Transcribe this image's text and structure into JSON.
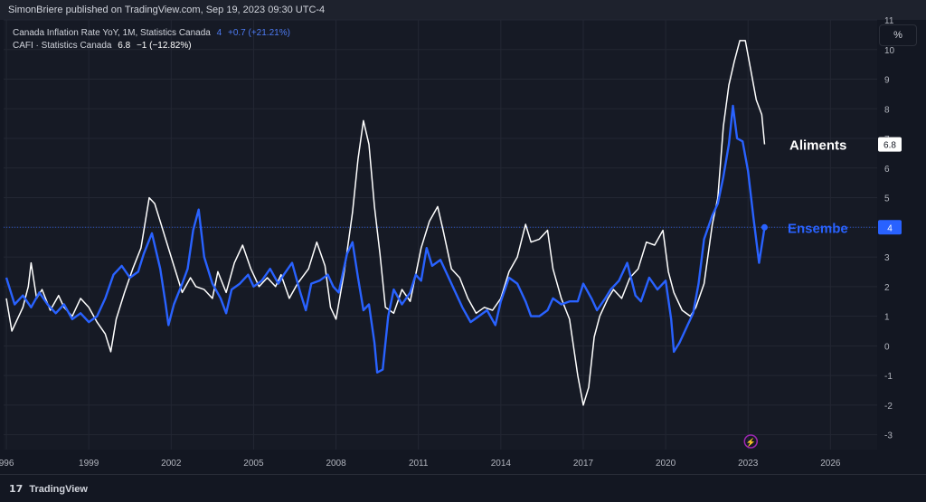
{
  "header": {
    "publisher_line": "SimonBriere published on TradingView.com, Sep 19, 2023 09:30 UTC-4"
  },
  "legend": {
    "series1": {
      "label": "Canada Inflation Rate YoY, 1M, Statistics Canada",
      "value": "4",
      "change": "+0.7 (+21.21%)"
    },
    "series2": {
      "label": "CAFI · Statistics Canada",
      "value": "6.8",
      "change": "−1 (−12.82%)"
    }
  },
  "scale_button": "%",
  "footer": {
    "brand": "TradingView",
    "logo_glyph": "17"
  },
  "colors": {
    "background": "#131722",
    "blue": "#2962ff",
    "white": "#ffffff",
    "purple": "#9c27b0"
  },
  "chart_data": {
    "type": "line",
    "y_axis_position": "right",
    "ylim": [
      -3.5,
      11
    ],
    "y_ticks": [
      "11",
      "10",
      "9",
      "8",
      "7",
      "6",
      "5",
      "4",
      "3",
      "2",
      "1",
      "0",
      "-1",
      "-2",
      "-3"
    ],
    "x_ticks": [
      {
        "label": "996",
        "year": 1996
      },
      {
        "label": "1999",
        "year": 1999
      },
      {
        "label": "2002",
        "year": 2002
      },
      {
        "label": "2005",
        "year": 2005
      },
      {
        "label": "2008",
        "year": 2008
      },
      {
        "label": "2011",
        "year": 2011
      },
      {
        "label": "2014",
        "year": 2014
      },
      {
        "label": "2017",
        "year": 2017
      },
      {
        "label": "2020",
        "year": 2020
      },
      {
        "label": "2023",
        "year": 2023
      },
      {
        "label": "2026",
        "year": 2026
      }
    ],
    "xlim": [
      1995.9,
      2027.7
    ],
    "series": [
      {
        "name": "Ensembe",
        "color": "#2962ff",
        "last_value_label": "4",
        "points": [
          [
            1996.0,
            2.3
          ],
          [
            1996.3,
            1.4
          ],
          [
            1996.6,
            1.7
          ],
          [
            1996.9,
            1.3
          ],
          [
            1997.2,
            1.8
          ],
          [
            1997.5,
            1.4
          ],
          [
            1997.8,
            1.1
          ],
          [
            1998.1,
            1.4
          ],
          [
            1998.4,
            0.9
          ],
          [
            1998.7,
            1.1
          ],
          [
            1999.0,
            0.8
          ],
          [
            1999.3,
            1.0
          ],
          [
            1999.6,
            1.6
          ],
          [
            1999.9,
            2.4
          ],
          [
            2000.2,
            2.7
          ],
          [
            2000.5,
            2.3
          ],
          [
            2000.8,
            2.5
          ],
          [
            2001.0,
            3.1
          ],
          [
            2001.3,
            3.8
          ],
          [
            2001.6,
            2.6
          ],
          [
            2001.8,
            1.4
          ],
          [
            2001.9,
            0.7
          ],
          [
            2002.1,
            1.4
          ],
          [
            2002.4,
            2.1
          ],
          [
            2002.6,
            2.6
          ],
          [
            2002.8,
            3.9
          ],
          [
            2003.0,
            4.6
          ],
          [
            2003.2,
            3.0
          ],
          [
            2003.5,
            2.1
          ],
          [
            2003.8,
            1.6
          ],
          [
            2004.0,
            1.1
          ],
          [
            2004.2,
            1.9
          ],
          [
            2004.5,
            2.1
          ],
          [
            2004.8,
            2.4
          ],
          [
            2005.0,
            2.0
          ],
          [
            2005.3,
            2.2
          ],
          [
            2005.6,
            2.6
          ],
          [
            2005.9,
            2.1
          ],
          [
            2006.1,
            2.4
          ],
          [
            2006.4,
            2.8
          ],
          [
            2006.7,
            1.8
          ],
          [
            2006.9,
            1.2
          ],
          [
            2007.1,
            2.1
          ],
          [
            2007.4,
            2.2
          ],
          [
            2007.7,
            2.4
          ],
          [
            2007.9,
            2.0
          ],
          [
            2008.1,
            1.8
          ],
          [
            2008.4,
            3.1
          ],
          [
            2008.6,
            3.5
          ],
          [
            2008.8,
            2.3
          ],
          [
            2009.0,
            1.2
          ],
          [
            2009.2,
            1.4
          ],
          [
            2009.4,
            0.1
          ],
          [
            2009.5,
            -0.9
          ],
          [
            2009.7,
            -0.8
          ],
          [
            2009.9,
            1.0
          ],
          [
            2010.1,
            1.9
          ],
          [
            2010.4,
            1.4
          ],
          [
            2010.7,
            1.8
          ],
          [
            2010.9,
            2.4
          ],
          [
            2011.1,
            2.2
          ],
          [
            2011.3,
            3.3
          ],
          [
            2011.5,
            2.7
          ],
          [
            2011.8,
            2.9
          ],
          [
            2012.0,
            2.5
          ],
          [
            2012.3,
            1.9
          ],
          [
            2012.6,
            1.3
          ],
          [
            2012.9,
            0.8
          ],
          [
            2013.2,
            1.0
          ],
          [
            2013.5,
            1.2
          ],
          [
            2013.8,
            0.7
          ],
          [
            2014.0,
            1.5
          ],
          [
            2014.3,
            2.3
          ],
          [
            2014.6,
            2.1
          ],
          [
            2014.9,
            1.5
          ],
          [
            2015.1,
            1.0
          ],
          [
            2015.4,
            1.0
          ],
          [
            2015.7,
            1.2
          ],
          [
            2015.9,
            1.6
          ],
          [
            2016.2,
            1.4
          ],
          [
            2016.5,
            1.5
          ],
          [
            2016.8,
            1.5
          ],
          [
            2017.0,
            2.1
          ],
          [
            2017.3,
            1.6
          ],
          [
            2017.5,
            1.2
          ],
          [
            2017.8,
            1.6
          ],
          [
            2018.0,
            1.9
          ],
          [
            2018.3,
            2.2
          ],
          [
            2018.6,
            2.8
          ],
          [
            2018.9,
            1.7
          ],
          [
            2019.1,
            1.5
          ],
          [
            2019.4,
            2.3
          ],
          [
            2019.7,
            1.9
          ],
          [
            2020.0,
            2.2
          ],
          [
            2020.2,
            0.9
          ],
          [
            2020.3,
            -0.2
          ],
          [
            2020.5,
            0.1
          ],
          [
            2020.8,
            0.7
          ],
          [
            2021.0,
            1.1
          ],
          [
            2021.2,
            2.1
          ],
          [
            2021.4,
            3.6
          ],
          [
            2021.7,
            4.4
          ],
          [
            2021.9,
            4.8
          ],
          [
            2022.1,
            5.7
          ],
          [
            2022.3,
            6.8
          ],
          [
            2022.45,
            8.1
          ],
          [
            2022.6,
            7.0
          ],
          [
            2022.8,
            6.9
          ],
          [
            2023.0,
            5.9
          ],
          [
            2023.2,
            4.3
          ],
          [
            2023.4,
            2.8
          ],
          [
            2023.6,
            4.0
          ]
        ]
      },
      {
        "name": "Aliments",
        "color": "#ffffff",
        "last_value_label": "6.8",
        "points": [
          [
            1996.0,
            1.6
          ],
          [
            1996.2,
            0.5
          ],
          [
            1996.4,
            0.9
          ],
          [
            1996.6,
            1.3
          ],
          [
            1996.8,
            2.0
          ],
          [
            1996.9,
            2.8
          ],
          [
            1997.1,
            1.6
          ],
          [
            1997.3,
            1.9
          ],
          [
            1997.6,
            1.2
          ],
          [
            1997.9,
            1.7
          ],
          [
            1998.1,
            1.3
          ],
          [
            1998.4,
            1.0
          ],
          [
            1998.7,
            1.6
          ],
          [
            1999.0,
            1.3
          ],
          [
            1999.3,
            0.8
          ],
          [
            1999.6,
            0.4
          ],
          [
            1999.8,
            -0.2
          ],
          [
            2000.0,
            0.9
          ],
          [
            2000.3,
            1.8
          ],
          [
            2000.6,
            2.6
          ],
          [
            2000.9,
            3.3
          ],
          [
            2001.2,
            5.0
          ],
          [
            2001.4,
            4.8
          ],
          [
            2001.6,
            4.2
          ],
          [
            2001.8,
            3.6
          ],
          [
            2002.1,
            2.7
          ],
          [
            2002.4,
            1.8
          ],
          [
            2002.7,
            2.3
          ],
          [
            2002.9,
            2.0
          ],
          [
            2003.2,
            1.9
          ],
          [
            2003.5,
            1.6
          ],
          [
            2003.7,
            2.5
          ],
          [
            2004.0,
            1.8
          ],
          [
            2004.3,
            2.8
          ],
          [
            2004.6,
            3.4
          ],
          [
            2004.9,
            2.6
          ],
          [
            2005.2,
            2.0
          ],
          [
            2005.5,
            2.3
          ],
          [
            2005.8,
            2.0
          ],
          [
            2006.0,
            2.4
          ],
          [
            2006.3,
            1.6
          ],
          [
            2006.6,
            2.1
          ],
          [
            2007.0,
            2.6
          ],
          [
            2007.3,
            3.5
          ],
          [
            2007.6,
            2.7
          ],
          [
            2007.8,
            1.3
          ],
          [
            2008.0,
            0.9
          ],
          [
            2008.3,
            2.5
          ],
          [
            2008.6,
            4.5
          ],
          [
            2008.8,
            6.3
          ],
          [
            2009.0,
            7.6
          ],
          [
            2009.2,
            6.8
          ],
          [
            2009.4,
            4.7
          ],
          [
            2009.6,
            3.1
          ],
          [
            2009.8,
            1.3
          ],
          [
            2010.1,
            1.1
          ],
          [
            2010.4,
            1.9
          ],
          [
            2010.7,
            1.5
          ],
          [
            2010.9,
            2.4
          ],
          [
            2011.1,
            3.3
          ],
          [
            2011.4,
            4.2
          ],
          [
            2011.7,
            4.7
          ],
          [
            2011.9,
            3.9
          ],
          [
            2012.2,
            2.6
          ],
          [
            2012.5,
            2.3
          ],
          [
            2012.8,
            1.6
          ],
          [
            2013.1,
            1.1
          ],
          [
            2013.4,
            1.3
          ],
          [
            2013.7,
            1.2
          ],
          [
            2014.0,
            1.6
          ],
          [
            2014.3,
            2.5
          ],
          [
            2014.6,
            3.0
          ],
          [
            2014.9,
            4.1
          ],
          [
            2015.1,
            3.5
          ],
          [
            2015.4,
            3.6
          ],
          [
            2015.7,
            3.9
          ],
          [
            2015.9,
            2.6
          ],
          [
            2016.2,
            1.6
          ],
          [
            2016.5,
            0.9
          ],
          [
            2016.8,
            -1.0
          ],
          [
            2017.0,
            -2.0
          ],
          [
            2017.2,
            -1.4
          ],
          [
            2017.4,
            0.3
          ],
          [
            2017.6,
            1.0
          ],
          [
            2017.9,
            1.6
          ],
          [
            2018.1,
            1.9
          ],
          [
            2018.4,
            1.6
          ],
          [
            2018.7,
            2.3
          ],
          [
            2019.0,
            2.6
          ],
          [
            2019.3,
            3.5
          ],
          [
            2019.6,
            3.4
          ],
          [
            2019.9,
            3.9
          ],
          [
            2020.1,
            2.5
          ],
          [
            2020.3,
            1.8
          ],
          [
            2020.6,
            1.2
          ],
          [
            2020.9,
            1.0
          ],
          [
            2021.1,
            1.3
          ],
          [
            2021.4,
            2.1
          ],
          [
            2021.7,
            4.1
          ],
          [
            2021.9,
            5.0
          ],
          [
            2022.1,
            7.4
          ],
          [
            2022.3,
            8.8
          ],
          [
            2022.5,
            9.6
          ],
          [
            2022.7,
            10.3
          ],
          [
            2022.9,
            10.3
          ],
          [
            2023.1,
            9.3
          ],
          [
            2023.3,
            8.3
          ],
          [
            2023.5,
            7.8
          ],
          [
            2023.6,
            6.8
          ]
        ]
      }
    ],
    "annotations": [
      {
        "text": "Aliments",
        "series": "Aliments"
      },
      {
        "text": "Ensembe",
        "series": "Ensembe"
      }
    ],
    "reference_line": {
      "value": 4,
      "style": "dotted",
      "color": "#2962ff"
    },
    "event_marker": {
      "year": 2023.1,
      "glyph": "⚡"
    }
  }
}
